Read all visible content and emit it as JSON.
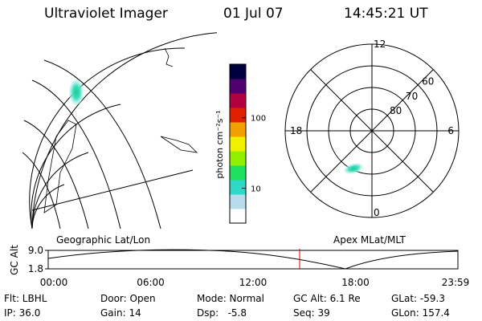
{
  "header": {
    "instrument": "Ultraviolet Imager",
    "date": "01 Jul 07",
    "time": "14:45:21 UT"
  },
  "colorbar": {
    "label": "photon cm⁻²s⁻¹",
    "log": true,
    "clim": [
      3.2,
      575
    ],
    "ticks": [
      10,
      100
    ],
    "colors": [
      "#ffffff",
      "#b8dcec",
      "#30d8c8",
      "#20e060",
      "#90f000",
      "#f0f000",
      "#f0a000",
      "#e02000",
      "#b00040",
      "#500070",
      "#000040"
    ]
  },
  "polar": {
    "lat_range": [
      90,
      50
    ],
    "rings": [
      60,
      70,
      80
    ],
    "hours": [
      "12",
      "6",
      "0",
      "18"
    ]
  },
  "map": {
    "left_label": "Geographic Lat/Lon",
    "right_label": "Apex MLat/MLT"
  },
  "altitude": {
    "ylabel": "GC Alt",
    "ylim": [
      1.8,
      9.0
    ],
    "yticks": [
      {
        "value": 9.0,
        "label": "9.0"
      },
      {
        "value": 1.8,
        "label": "1.8"
      }
    ],
    "xticks": [
      "00:00",
      "06:00",
      "12:00",
      "18:00",
      "23:59"
    ]
  },
  "footer": [
    [
      "Flt: LBHL",
      "Door: Open",
      "Mode: Normal",
      "GC Alt: 6.1 Re",
      "GLat: -59.3"
    ],
    [
      "IP: 36.0",
      "Gain: 14",
      "Dsp:   -5.8",
      "Seq: 39",
      "GLon: 157.4"
    ]
  ]
}
